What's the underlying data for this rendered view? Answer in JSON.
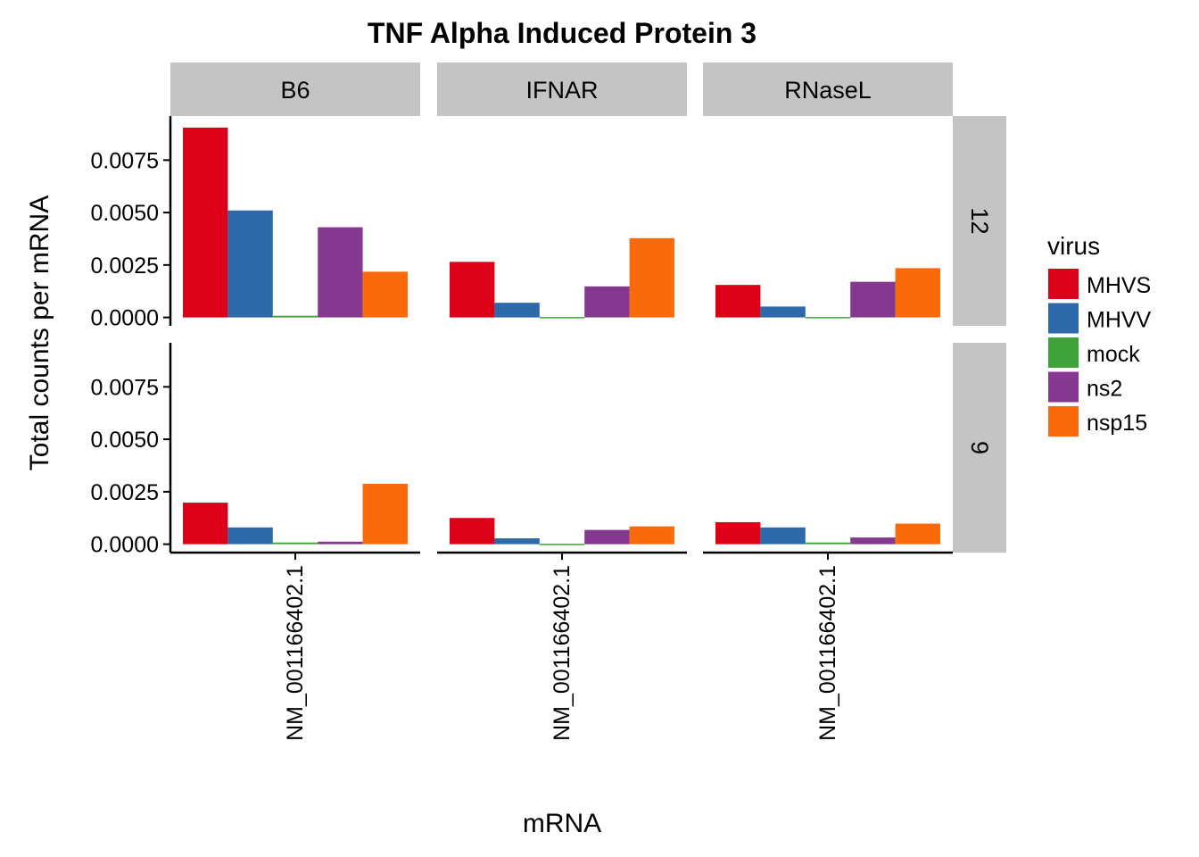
{
  "chart_data": {
    "type": "bar",
    "title": "TNF Alpha Induced Protein 3",
    "xlabel": "mRNA",
    "ylabel": "Total counts per mRNA",
    "ylim": [
      -0.0004,
      0.0096
    ],
    "yticks": [
      0,
      0.0025,
      0.005,
      0.0075
    ],
    "ytick_labels": [
      "0.0000",
      "0.0025",
      "0.0050",
      "0.0075"
    ],
    "grid": false,
    "legend": {
      "title": "virus",
      "placement": "right",
      "items": [
        "MHVS",
        "MHVV",
        "mock",
        "ns2",
        "nsp15"
      ]
    },
    "colors": {
      "MHVS": "#dc0018",
      "MHVV": "#2e69a9",
      "mock": "#3fa23a",
      "ns2": "#84388f",
      "nsp15": "#fb6a0a"
    },
    "facet_columns": [
      "B6",
      "IFNAR",
      "RNaseL"
    ],
    "facet_rows": [
      "12",
      "9"
    ],
    "category": "NM_001166402.1",
    "panels": [
      {
        "row": "12",
        "col": "B6",
        "values": [
          0.00905,
          0.0051,
          8e-05,
          0.0043,
          0.00218
        ]
      },
      {
        "row": "12",
        "col": "IFNAR",
        "values": [
          0.00265,
          0.0007,
          2e-05,
          0.00148,
          0.00378
        ]
      },
      {
        "row": "12",
        "col": "RNaseL",
        "values": [
          0.00155,
          0.00052,
          2e-05,
          0.0017,
          0.00235
        ]
      },
      {
        "row": "9",
        "col": "B6",
        "values": [
          0.00198,
          0.0008,
          8e-05,
          0.00012,
          0.00288
        ]
      },
      {
        "row": "9",
        "col": "IFNAR",
        "values": [
          0.00125,
          0.00028,
          2e-05,
          0.00068,
          0.00085
        ]
      },
      {
        "row": "9",
        "col": "RNaseL",
        "values": [
          0.00105,
          0.0008,
          8e-05,
          0.00032,
          0.00098
        ]
      }
    ]
  }
}
